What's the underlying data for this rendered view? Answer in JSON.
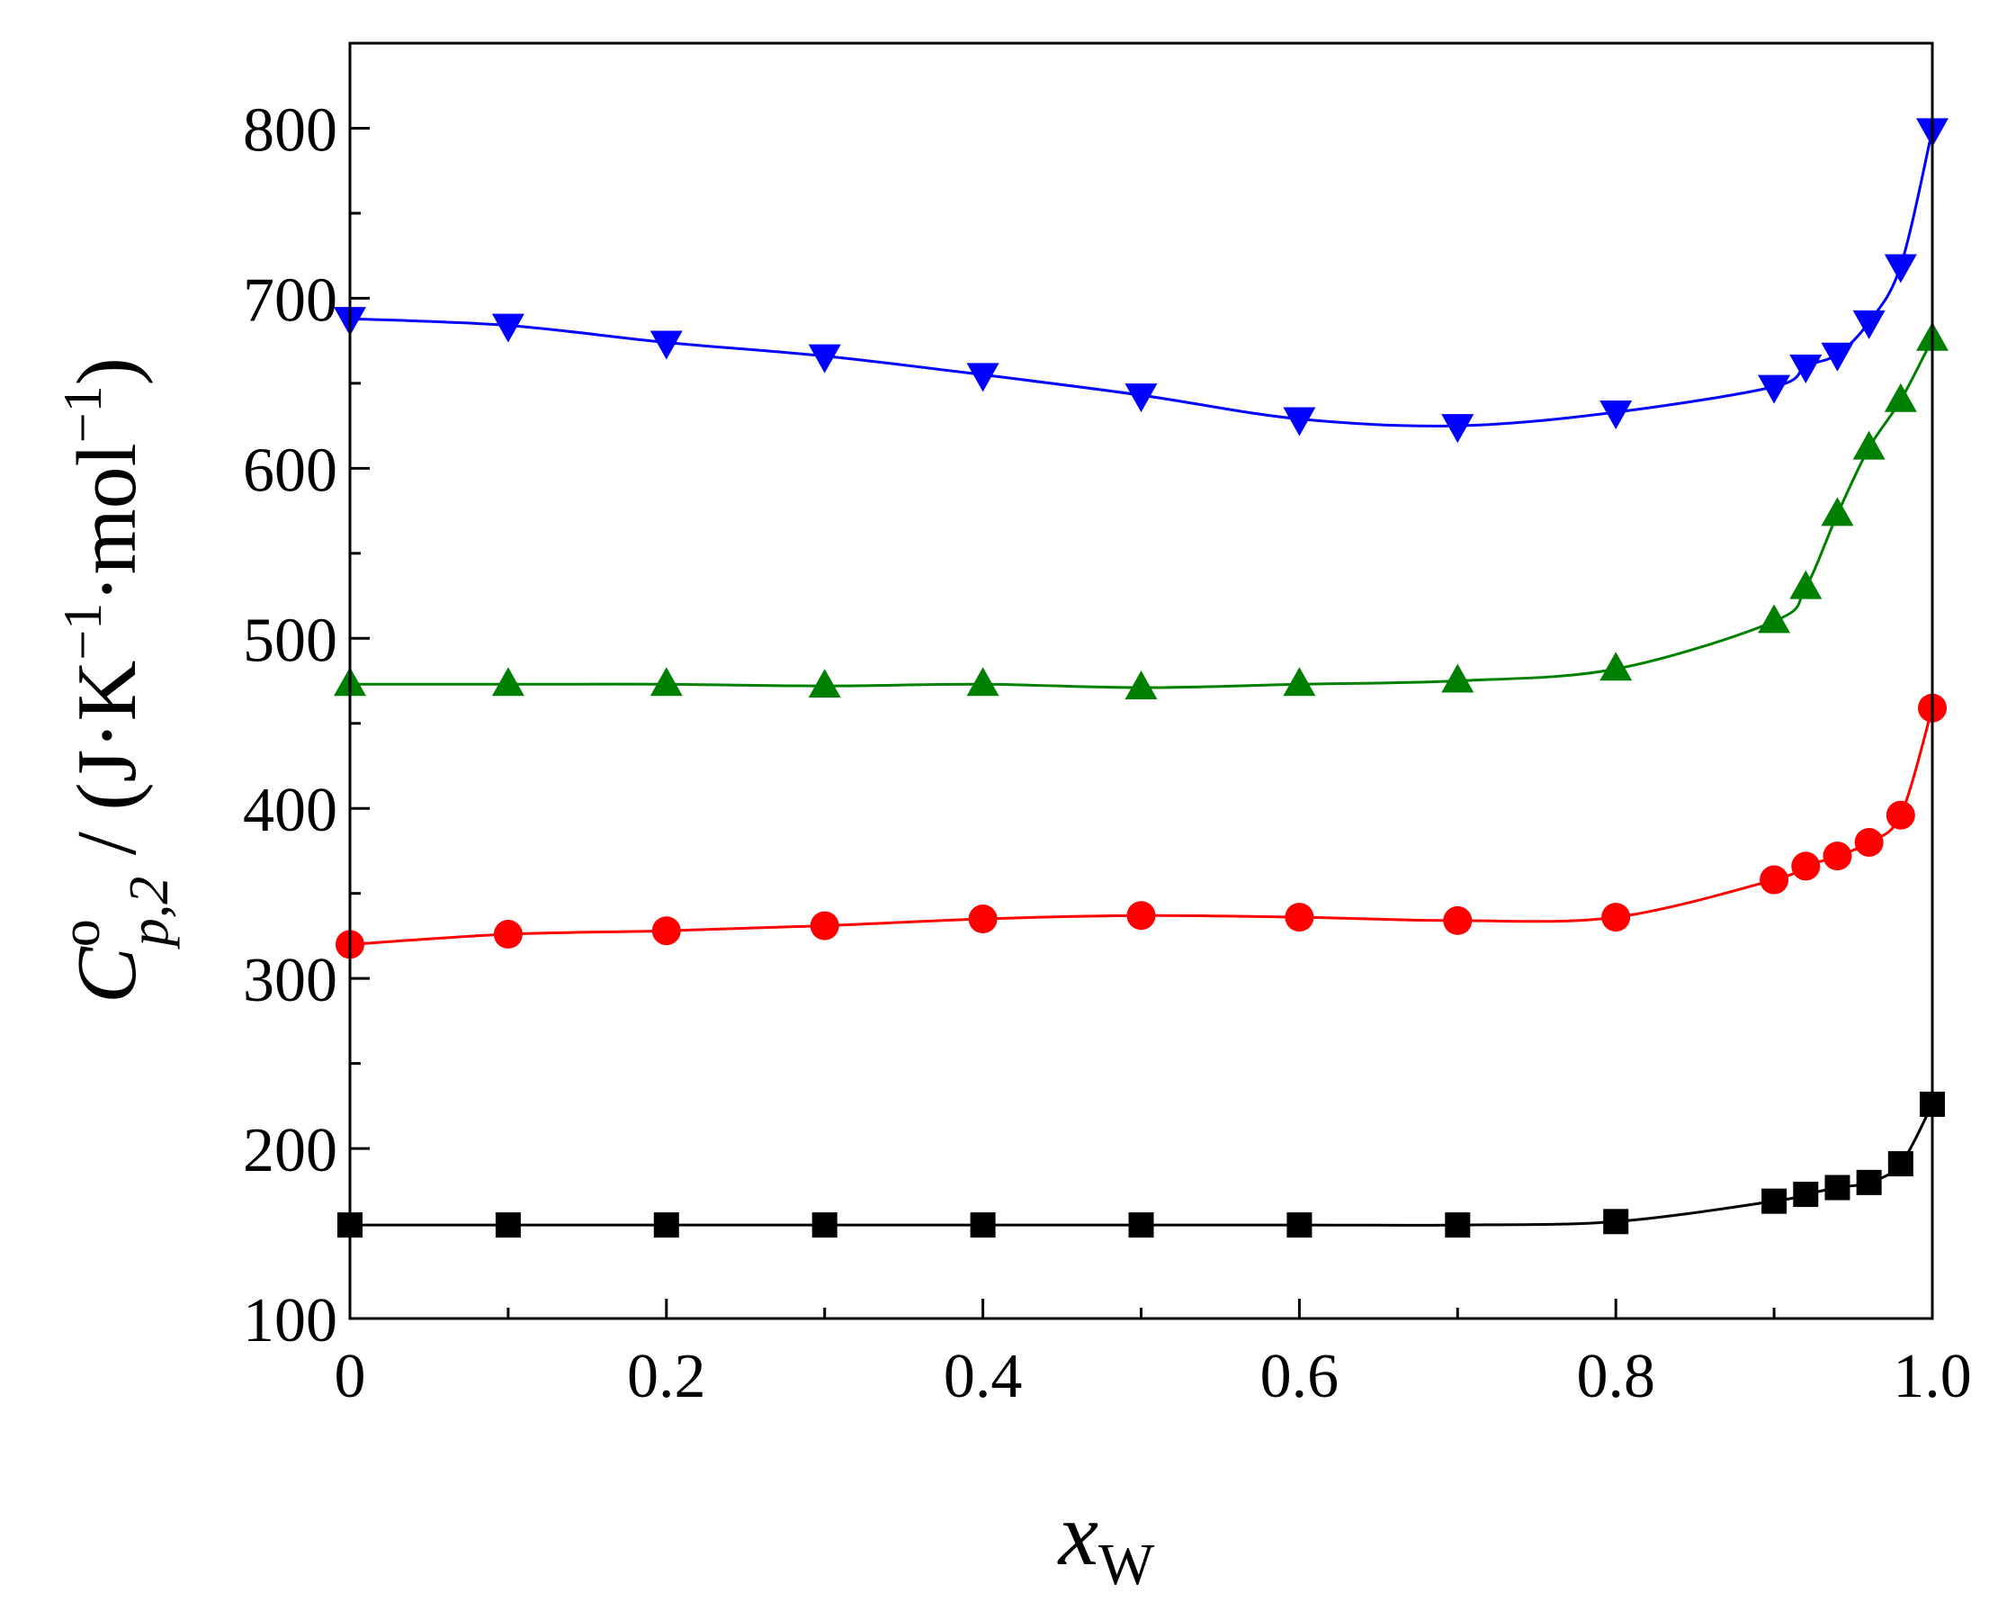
{
  "chart_data": {
    "type": "line",
    "title": "",
    "xlabel": {
      "main": "x",
      "sub": "W"
    },
    "ylabel": {
      "symbol": "C",
      "sup": "o",
      "sub": "p,2",
      "unit_text": " / (J·K",
      "exp1": "−1",
      "unit_mid": "·mol",
      "exp2": "−1",
      "unit_end": ")"
    },
    "xlim": [
      0,
      1.0
    ],
    "ylim": [
      100,
      850
    ],
    "x_ticks": [
      0,
      0.2,
      0.4,
      0.6,
      0.8,
      1.0
    ],
    "x_tick_labels": [
      "0",
      "0.2",
      "0.4",
      "0.6",
      "0.8",
      "1.0"
    ],
    "x_minor_ticks": [
      0.1,
      0.3,
      0.5,
      0.7,
      0.9
    ],
    "y_ticks": [
      100,
      200,
      300,
      400,
      500,
      600,
      700,
      800
    ],
    "y_tick_labels": [
      "100",
      "200",
      "300",
      "400",
      "500",
      "600",
      "700",
      "800"
    ],
    "y_minor_ticks": [
      150,
      250,
      350,
      450,
      550,
      650,
      750
    ],
    "grid": false,
    "x": [
      0,
      0.1,
      0.2,
      0.3,
      0.4,
      0.5,
      0.6,
      0.7,
      0.8,
      0.9,
      0.92,
      0.94,
      0.96,
      0.98,
      1.0
    ],
    "series": [
      {
        "name": "squares",
        "marker": "square",
        "color": "#000000",
        "values": [
          155,
          155,
          155,
          155,
          155,
          155,
          155,
          155,
          157,
          169,
          173,
          177,
          180,
          191,
          226
        ]
      },
      {
        "name": "circles",
        "marker": "circle",
        "color": "#ff0000",
        "values": [
          320,
          326,
          328,
          331,
          335,
          337,
          336,
          334,
          336,
          358,
          366,
          372,
          380,
          396,
          459
        ]
      },
      {
        "name": "up-triangles",
        "marker": "triangle-up",
        "color": "#008000",
        "values": [
          473,
          473,
          473,
          472,
          473,
          471,
          473,
          475,
          482,
          510,
          530,
          573,
          612,
          640,
          676
        ]
      },
      {
        "name": "down-triangles",
        "marker": "triangle-down",
        "color": "#0000ff",
        "values": [
          688,
          684,
          674,
          666,
          655,
          643,
          629,
          625,
          633,
          648,
          660,
          667,
          686,
          719,
          799
        ]
      }
    ]
  }
}
